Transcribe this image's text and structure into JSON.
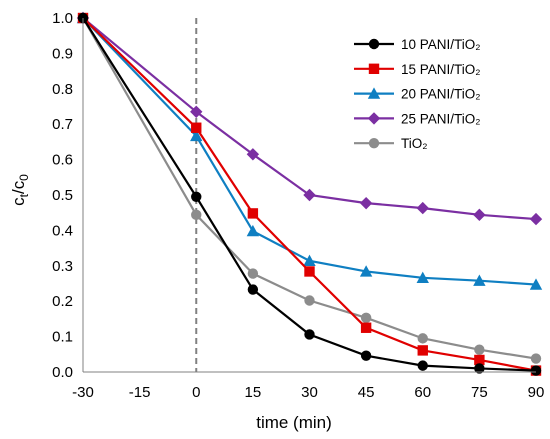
{
  "chart_data": {
    "type": "line",
    "xlabel": "time (min)",
    "ylabel": {
      "main": "c",
      "sub1": "t",
      "slash": "/c",
      "sub2": "0"
    },
    "xlim": [
      -30,
      90
    ],
    "ylim": [
      0,
      1.0
    ],
    "x": [
      -30,
      0,
      15,
      30,
      45,
      60,
      75,
      90
    ],
    "x_tick_labels": [
      "-30",
      "-15",
      "0",
      "15",
      "30",
      "45",
      "60",
      "75",
      "90"
    ],
    "x_ticks": [
      -30,
      -15,
      0,
      15,
      30,
      45,
      60,
      75,
      90
    ],
    "y_tick_labels": [
      "0.0",
      "0.1",
      "0.2",
      "0.3",
      "0.4",
      "0.5",
      "0.6",
      "0.7",
      "0.8",
      "0.9",
      "1.0"
    ],
    "y_ticks": [
      0,
      0.1,
      0.2,
      0.3,
      0.4,
      0.5,
      0.6,
      0.7,
      0.8,
      0.9,
      1.0
    ],
    "grid": false,
    "reference_line": {
      "x": 0,
      "style": "dashed"
    },
    "legend_position": "top-right",
    "series": [
      {
        "name": "10 PANI/TiO₂",
        "color": "#000000",
        "marker": "circle",
        "values": [
          1.0,
          0.495,
          0.233,
          0.106,
          0.046,
          0.018,
          0.01,
          0.004
        ]
      },
      {
        "name": "15 PANI/TiO₂",
        "color": "#e00000",
        "marker": "square",
        "values": [
          1.0,
          0.69,
          0.448,
          0.284,
          0.125,
          0.061,
          0.034,
          0.004
        ]
      },
      {
        "name": "20 PANI/TiO₂",
        "color": "#0f7fc2",
        "marker": "triangle",
        "values": [
          1.0,
          0.667,
          0.398,
          0.314,
          0.284,
          0.266,
          0.258,
          0.247
        ]
      },
      {
        "name": "25 PANI/TiO₂",
        "color": "#7b2fa2",
        "marker": "diamond",
        "values": [
          1.0,
          0.735,
          0.615,
          0.5,
          0.477,
          0.463,
          0.444,
          0.432
        ]
      },
      {
        "name": "TiO₂",
        "color": "#8c8c8c",
        "marker": "circle",
        "values": [
          1.0,
          0.444,
          0.278,
          0.202,
          0.153,
          0.095,
          0.063,
          0.038
        ]
      }
    ]
  }
}
